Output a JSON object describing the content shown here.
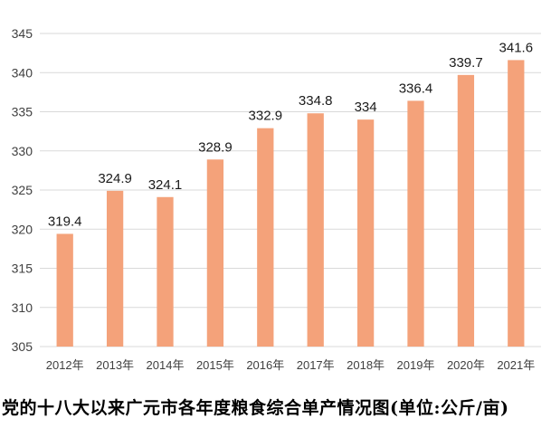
{
  "chart_data": {
    "type": "bar",
    "title": "",
    "xlabel": "",
    "ylabel": "",
    "categories": [
      "2012年",
      "2013年",
      "2014年",
      "2015年",
      "2016年",
      "2017年",
      "2018年",
      "2019年",
      "2020年",
      "2021年"
    ],
    "values": [
      319.4,
      324.9,
      324.1,
      328.9,
      332.9,
      334.8,
      334,
      336.4,
      339.7,
      341.6
    ],
    "value_labels": [
      "319.4",
      "324.9",
      "324.1",
      "328.9",
      "332.9",
      "334.8",
      "334",
      "336.4",
      "339.7",
      "341.6"
    ],
    "ylim": [
      305,
      345
    ],
    "yticks": [
      305,
      310,
      315,
      320,
      325,
      330,
      335,
      340,
      345
    ],
    "grid": true,
    "bar_color": "#F4A27A",
    "grid_color": "#D9D9D9"
  },
  "caption": "党的十八大以来广元市各年度粮食综合单产情况图(单位:公斤/亩)"
}
